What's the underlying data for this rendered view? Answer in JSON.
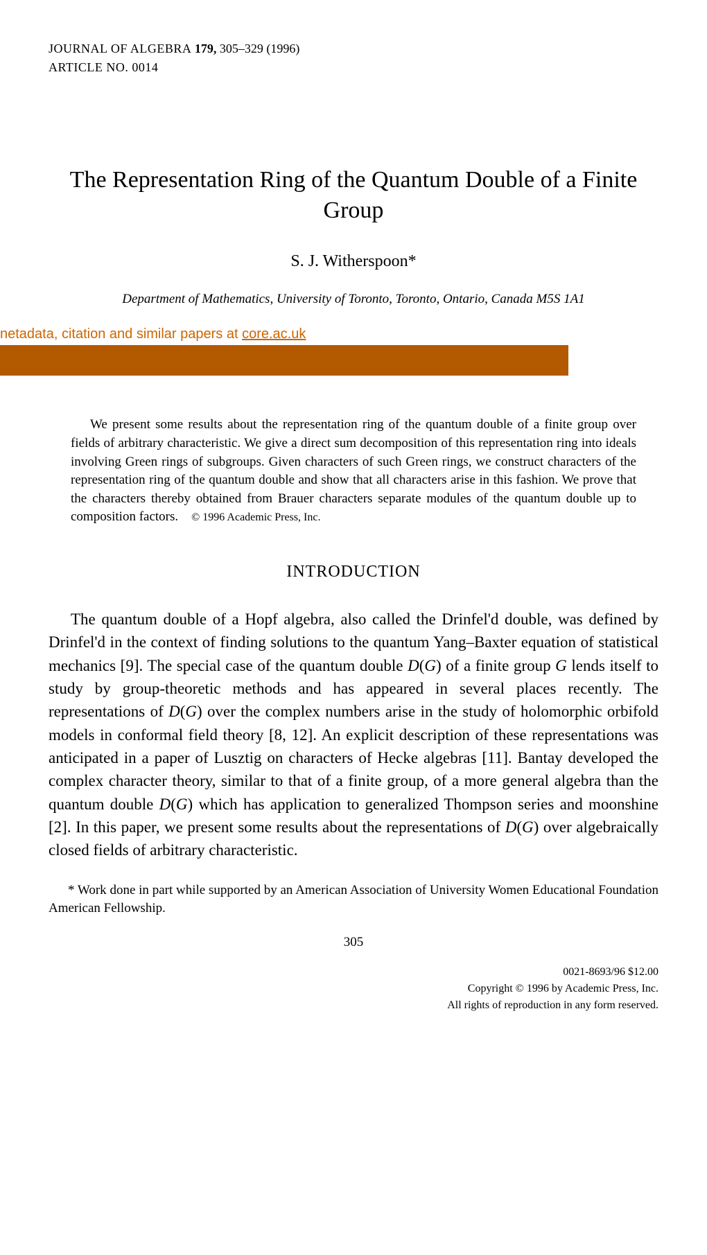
{
  "journal": {
    "name": "JOURNAL OF ALGEBRA",
    "volume": "179,",
    "pages": "305–329 (1996)",
    "article_no_label": "ARTICLE NO.",
    "article_no": "0014"
  },
  "title": "The Representation Ring of the Quantum Double of a Finite Group",
  "author": "S. J. Witherspoon*",
  "affiliation": "Department of Mathematics, University of Toronto, Toronto, Ontario, Canada M5S 1A1",
  "core": {
    "text_prefix": "netadata, citation and similar papers at ",
    "link": "core.ac.uk"
  },
  "abstract": {
    "text": "We present some results about the representation ring of the quantum double of a finite group over fields of arbitrary characteristic. We give a direct sum decomposition of this representation ring into ideals involving Green rings of subgroups. Given characters of such Green rings, we construct characters of the representation ring of the quantum double and show that all characters arise in this fashion. We prove that the characters thereby obtained from Brauer characters separate modules of the quantum double up to composition factors.",
    "copyright": "© 1996 Academic Press, Inc."
  },
  "section_heading": "INTRODUCTION",
  "body": "The quantum double of a Hopf algebra, also called the Drinfel'd double, was defined by Drinfel'd in the context of finding solutions to the quantum Yang–Baxter equation of statistical mechanics [9]. The special case of the quantum double D(G) of a finite group G lends itself to study by group-theoretic methods and has appeared in several places recently. The representations of D(G) over the complex numbers arise in the study of holomorphic orbifold models in conformal field theory [8, 12]. An explicit description of these representations was anticipated in a paper of Lusztig on characters of Hecke algebras [11]. Bantay developed the complex character theory, similar to that of a finite group, of a more general algebra than the quantum double D(G) which has application to generalized Thompson series and moonshine [2]. In this paper, we present some results about the representations of D(G) over algebraically closed fields of arbitrary characteristic.",
  "footnote": "* Work done in part while supported by an American Association of University Women Educational Foundation American Fellowship.",
  "page_number": "305",
  "footer": {
    "issn_price": "0021-8693/96 $12.00",
    "copyright": "Copyright © 1996 by Academic Press, Inc.",
    "rights": "All rights of reproduction in any form reserved."
  }
}
